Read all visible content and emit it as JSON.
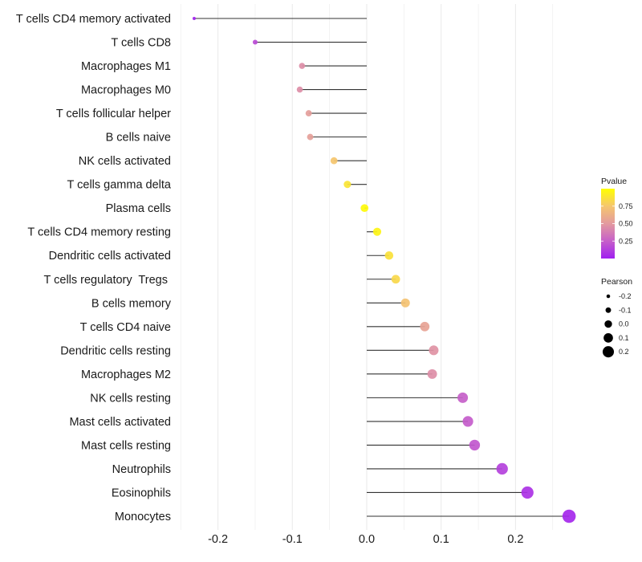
{
  "chart_data": {
    "type": "lollipop",
    "title": "",
    "xlabel": "",
    "ylabel": "",
    "xlim": [
      -0.25,
      0.28
    ],
    "x_ticks": [
      -0.2,
      -0.1,
      0.0,
      0.1,
      0.2
    ],
    "x_tick_labels": [
      "-0.2",
      "-0.1",
      "0.0",
      "0.1",
      "0.2"
    ],
    "x_minor_ticks": [
      -0.25,
      -0.15,
      -0.05,
      0.05,
      0.15,
      0.25
    ],
    "grid": true,
    "baseline": 0,
    "categories": [
      "T cells CD4 memory activated",
      "T cells CD8",
      "Macrophages M1",
      "Macrophages M0",
      "T cells follicular helper",
      "B cells naive",
      "NK cells activated",
      "T cells gamma delta",
      "Plasma cells",
      "T cells CD4 memory resting",
      "Dendritic cells activated",
      "T cells regulatory  Tregs ",
      "B cells memory",
      "T cells CD4 naive",
      "Dendritic cells resting",
      "Macrophages M2",
      "NK cells resting",
      "Mast cells activated",
      "Mast cells resting",
      "Neutrophils",
      "Eosinophils",
      "Monocytes"
    ],
    "series": [
      {
        "name": "Pearson",
        "values": [
          -0.232,
          -0.15,
          -0.087,
          -0.09,
          -0.078,
          -0.076,
          -0.044,
          -0.026,
          -0.003,
          0.014,
          0.03,
          0.039,
          0.052,
          0.078,
          0.09,
          0.088,
          0.129,
          0.136,
          0.145,
          0.182,
          0.216,
          0.272
        ]
      },
      {
        "name": "Pvalue",
        "values": [
          0.01,
          0.17,
          0.45,
          0.45,
          0.52,
          0.53,
          0.75,
          0.88,
          0.98,
          0.95,
          0.87,
          0.83,
          0.73,
          0.55,
          0.47,
          0.45,
          0.25,
          0.24,
          0.22,
          0.13,
          0.07,
          0.03
        ]
      }
    ],
    "legends": {
      "position": "right",
      "color": {
        "title": "Pvalue",
        "ticks": [
          0.25,
          0.5,
          0.75
        ],
        "tick_labels": [
          "0.25",
          "0.50",
          "0.75"
        ],
        "range": [
          0.0,
          1.0
        ],
        "low_color": "#A020F0",
        "high_color": "#FFFF00"
      },
      "size": {
        "title": "Pearson",
        "values": [
          -0.2,
          -0.1,
          0.0,
          0.1,
          0.2
        ],
        "labels": [
          "-0.2",
          "-0.1",
          "0.0",
          "0.1",
          "0.2"
        ]
      }
    },
    "colors": {
      "segment": "#333333",
      "grid": "#ebebeb",
      "gradient_stops": [
        "#A020F0",
        "#C65FC9",
        "#E39A9F",
        "#F5C66E",
        "#FFFF00"
      ]
    }
  }
}
